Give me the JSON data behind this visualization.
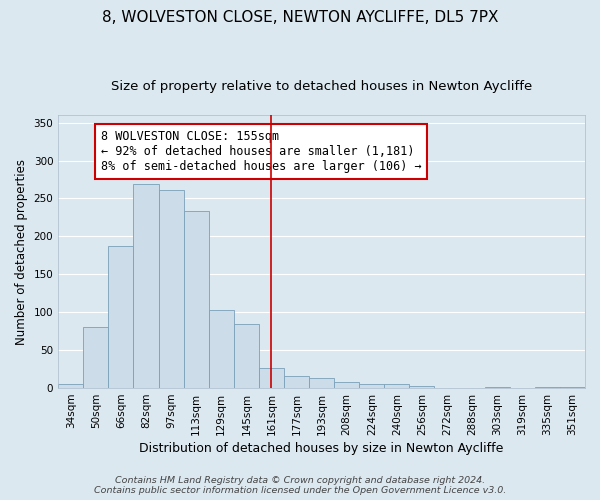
{
  "title": "8, WOLVESTON CLOSE, NEWTON AYCLIFFE, DL5 7PX",
  "subtitle": "Size of property relative to detached houses in Newton Aycliffe",
  "xlabel": "Distribution of detached houses by size in Newton Aycliffe",
  "ylabel": "Number of detached properties",
  "bar_labels": [
    "34sqm",
    "50sqm",
    "66sqm",
    "82sqm",
    "97sqm",
    "113sqm",
    "129sqm",
    "145sqm",
    "161sqm",
    "177sqm",
    "193sqm",
    "208sqm",
    "224sqm",
    "240sqm",
    "256sqm",
    "272sqm",
    "288sqm",
    "303sqm",
    "319sqm",
    "335sqm",
    "351sqm"
  ],
  "bar_values": [
    6,
    81,
    187,
    269,
    261,
    233,
    103,
    84,
    27,
    16,
    13,
    8,
    5,
    5,
    3,
    0,
    0,
    1,
    0,
    2,
    2
  ],
  "bar_color": "#ccdce8",
  "bar_edgecolor": "#7aa0b8",
  "vline_x": 8,
  "vline_color": "#cc0000",
  "ylim": [
    0,
    360
  ],
  "yticks": [
    0,
    50,
    100,
    150,
    200,
    250,
    300,
    350
  ],
  "annotation_title": "8 WOLVESTON CLOSE: 155sqm",
  "annotation_line1": "← 92% of detached houses are smaller (1,181)",
  "annotation_line2": "8% of semi-detached houses are larger (106) →",
  "annotation_box_color": "#cc0000",
  "background_color": "#dce8f0",
  "plot_background": "#dce8f0",
  "footer_line1": "Contains HM Land Registry data © Crown copyright and database right 2024.",
  "footer_line2": "Contains public sector information licensed under the Open Government Licence v3.0.",
  "title_fontsize": 11,
  "subtitle_fontsize": 9.5,
  "xlabel_fontsize": 9,
  "ylabel_fontsize": 8.5,
  "tick_fontsize": 7.5,
  "annotation_fontsize": 8.5,
  "footer_fontsize": 6.8
}
